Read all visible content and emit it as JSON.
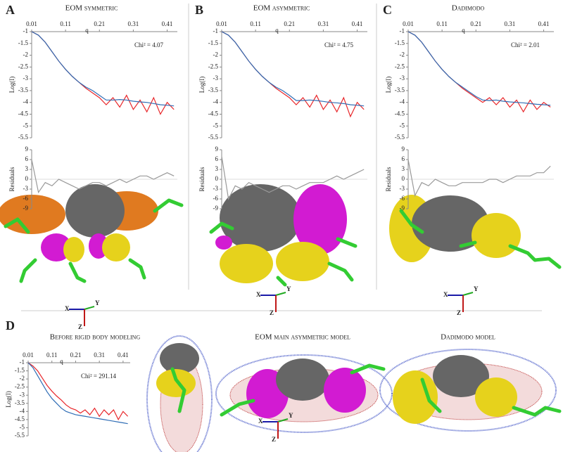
{
  "panels": [
    {
      "letter": "A",
      "title": "EOM symmetric"
    },
    {
      "letter": "B",
      "title": "EOM asymmetric"
    },
    {
      "letter": "C",
      "title": "Dadimodo"
    },
    {
      "letter": "D",
      "title": "Before rigid body modeling"
    }
  ],
  "model_titles": [
    "EOM main asymmetric model",
    "Dadimodo model"
  ],
  "axis_labels": [
    "X",
    "Y",
    "Z"
  ],
  "chart_data": [
    {
      "type": "line",
      "xlabel": "q",
      "ylabel": "Log(I)",
      "annotation": "Chi² = 4.07",
      "x": [
        0.01,
        0.03,
        0.05,
        0.07,
        0.09,
        0.11,
        0.13,
        0.15,
        0.17,
        0.19,
        0.21,
        0.23,
        0.25,
        0.27,
        0.29,
        0.31,
        0.33,
        0.35,
        0.37,
        0.39,
        0.41,
        0.43
      ],
      "xlim": [
        0.01,
        0.44
      ],
      "xticks": [
        0.01,
        0.11,
        0.21,
        0.31,
        0.41
      ],
      "ylim": [
        -5.5,
        -1
      ],
      "yticks": [
        -1,
        -1.5,
        -2,
        -2.5,
        -3,
        -3.5,
        -4,
        -4.5,
        -5,
        -5.5
      ],
      "series": [
        {
          "name": "data",
          "color": "#e8262a",
          "values": [
            -1.0,
            -1.15,
            -1.45,
            -1.85,
            -2.25,
            -2.6,
            -2.9,
            -3.15,
            -3.4,
            -3.6,
            -3.8,
            -4.1,
            -3.8,
            -4.2,
            -3.7,
            -4.3,
            -3.9,
            -4.4,
            -3.8,
            -4.5,
            -4.0,
            -4.3
          ]
        },
        {
          "name": "fit",
          "color": "#2f6db5",
          "values": [
            -1.0,
            -1.15,
            -1.45,
            -1.85,
            -2.25,
            -2.6,
            -2.9,
            -3.15,
            -3.35,
            -3.5,
            -3.7,
            -3.9,
            -3.9,
            -3.88,
            -3.9,
            -3.95,
            -3.98,
            -4.0,
            -4.05,
            -4.1,
            -4.12,
            -4.15
          ]
        }
      ]
    },
    {
      "type": "line",
      "ylabel": "Residuals",
      "x": [
        0.01,
        0.03,
        0.05,
        0.07,
        0.09,
        0.11,
        0.13,
        0.15,
        0.17,
        0.19,
        0.21,
        0.23,
        0.25,
        0.27,
        0.29,
        0.31,
        0.33,
        0.35,
        0.37,
        0.39,
        0.41,
        0.43
      ],
      "xlim": [
        0.01,
        0.44
      ],
      "ylim": [
        -9,
        9
      ],
      "yticks": [
        9,
        6,
        3,
        0,
        -3,
        -6,
        -9
      ],
      "zero_line": true,
      "series": [
        {
          "name": "residuals",
          "color": "#999999",
          "values": [
            6,
            -4,
            -1,
            -2,
            0,
            -1,
            -2,
            -3,
            -2,
            -1,
            -1,
            -2,
            -1,
            0,
            -1,
            0,
            1,
            1,
            0,
            1,
            2,
            1
          ]
        }
      ]
    },
    {
      "type": "line",
      "xlabel": "q",
      "ylabel": "Log(I)",
      "annotation": "Chi² = 4.75",
      "x": [
        0.01,
        0.03,
        0.05,
        0.07,
        0.09,
        0.11,
        0.13,
        0.15,
        0.17,
        0.19,
        0.21,
        0.23,
        0.25,
        0.27,
        0.29,
        0.31,
        0.33,
        0.35,
        0.37,
        0.39,
        0.41,
        0.43
      ],
      "xlim": [
        0.01,
        0.44
      ],
      "xticks": [
        0.01,
        0.11,
        0.21,
        0.31,
        0.41
      ],
      "ylim": [
        -5.5,
        -1
      ],
      "yticks": [
        -1,
        -1.5,
        -2,
        -2.5,
        -3,
        -3.5,
        -4,
        -4.5,
        -5,
        -5.5
      ],
      "series": [
        {
          "name": "data",
          "color": "#e8262a",
          "values": [
            -1.0,
            -1.15,
            -1.45,
            -1.85,
            -2.25,
            -2.6,
            -2.9,
            -3.15,
            -3.4,
            -3.6,
            -3.8,
            -4.1,
            -3.8,
            -4.2,
            -3.7,
            -4.3,
            -3.9,
            -4.4,
            -3.8,
            -4.6,
            -4.0,
            -4.3
          ]
        },
        {
          "name": "fit",
          "color": "#2f6db5",
          "values": [
            -1.0,
            -1.15,
            -1.45,
            -1.85,
            -2.25,
            -2.6,
            -2.9,
            -3.15,
            -3.35,
            -3.5,
            -3.7,
            -3.92,
            -3.92,
            -3.9,
            -3.92,
            -3.96,
            -4.0,
            -4.02,
            -4.05,
            -4.1,
            -4.12,
            -4.15
          ]
        }
      ]
    },
    {
      "type": "line",
      "ylabel": "Residuals",
      "x": [
        0.01,
        0.03,
        0.05,
        0.07,
        0.09,
        0.11,
        0.13,
        0.15,
        0.17,
        0.19,
        0.21,
        0.23,
        0.25,
        0.27,
        0.29,
        0.31,
        0.33,
        0.35,
        0.37,
        0.39,
        0.41,
        0.43
      ],
      "xlim": [
        0.01,
        0.44
      ],
      "ylim": [
        -9,
        9
      ],
      "yticks": [
        9,
        6,
        3,
        0,
        -3,
        -6,
        -9
      ],
      "zero_line": true,
      "series": [
        {
          "name": "residuals",
          "color": "#999999",
          "values": [
            7,
            -6,
            -2,
            -3,
            -1,
            -2,
            -3,
            -4,
            -3,
            -2,
            -2,
            -3,
            -2,
            -1,
            -1,
            -1,
            0,
            1,
            0,
            1,
            2,
            3
          ]
        }
      ]
    },
    {
      "type": "line",
      "xlabel": "q",
      "ylabel": "Log(I)",
      "annotation": "Chi² = 2.01",
      "x": [
        0.01,
        0.03,
        0.05,
        0.07,
        0.09,
        0.11,
        0.13,
        0.15,
        0.17,
        0.19,
        0.21,
        0.23,
        0.25,
        0.27,
        0.29,
        0.31,
        0.33,
        0.35,
        0.37,
        0.39,
        0.41,
        0.43
      ],
      "xlim": [
        0.01,
        0.44
      ],
      "xticks": [
        0.01,
        0.11,
        0.21,
        0.31,
        0.41
      ],
      "ylim": [
        -5.5,
        -1
      ],
      "yticks": [
        -1,
        -1.5,
        -2,
        -2.5,
        -3,
        -3.5,
        -4,
        -4.5,
        -5,
        -5.5
      ],
      "series": [
        {
          "name": "data",
          "color": "#e8262a",
          "values": [
            -1.0,
            -1.15,
            -1.45,
            -1.85,
            -2.25,
            -2.6,
            -2.9,
            -3.15,
            -3.4,
            -3.6,
            -3.8,
            -4.0,
            -3.8,
            -4.1,
            -3.8,
            -4.2,
            -3.9,
            -4.4,
            -3.9,
            -4.3,
            -4.0,
            -4.2
          ]
        },
        {
          "name": "fit",
          "color": "#2f6db5",
          "values": [
            -1.0,
            -1.15,
            -1.45,
            -1.85,
            -2.25,
            -2.6,
            -2.9,
            -3.15,
            -3.35,
            -3.55,
            -3.75,
            -3.9,
            -3.92,
            -3.9,
            -3.95,
            -3.98,
            -4.0,
            -4.02,
            -4.05,
            -4.08,
            -4.1,
            -4.12
          ]
        }
      ]
    },
    {
      "type": "line",
      "ylabel": "Residuals",
      "x": [
        0.01,
        0.03,
        0.05,
        0.07,
        0.09,
        0.11,
        0.13,
        0.15,
        0.17,
        0.19,
        0.21,
        0.23,
        0.25,
        0.27,
        0.29,
        0.31,
        0.33,
        0.35,
        0.37,
        0.39,
        0.41,
        0.43
      ],
      "xlim": [
        0.01,
        0.44
      ],
      "ylim": [
        -9,
        9
      ],
      "yticks": [
        9,
        6,
        3,
        0,
        -3,
        -6,
        -9
      ],
      "zero_line": true,
      "series": [
        {
          "name": "residuals",
          "color": "#999999",
          "values": [
            6,
            -5,
            -1,
            -2,
            0,
            -1,
            -2,
            -2,
            -1,
            -1,
            -1,
            -1,
            0,
            0,
            -1,
            0,
            1,
            1,
            1,
            2,
            2,
            4
          ]
        }
      ]
    },
    {
      "type": "line",
      "xlabel": "q",
      "ylabel": "Log(I)",
      "annotation": "Chi² = 291.14",
      "x": [
        0.01,
        0.03,
        0.05,
        0.07,
        0.09,
        0.11,
        0.13,
        0.15,
        0.17,
        0.19,
        0.21,
        0.23,
        0.25,
        0.27,
        0.29,
        0.31,
        0.33,
        0.35,
        0.37,
        0.39,
        0.41,
        0.43
      ],
      "xlim": [
        0.01,
        0.44
      ],
      "xticks": [
        0.01,
        0.11,
        0.21,
        0.31,
        0.41
      ],
      "ylim": [
        -5.5,
        -1
      ],
      "yticks": [
        -1,
        -1.5,
        -2,
        -2.5,
        -3,
        -3.5,
        -4,
        -4.5,
        -5,
        -5.5
      ],
      "series": [
        {
          "name": "data",
          "color": "#e8262a",
          "values": [
            -1.0,
            -1.2,
            -1.5,
            -1.95,
            -2.4,
            -2.75,
            -3.05,
            -3.3,
            -3.6,
            -3.8,
            -3.9,
            -4.1,
            -3.9,
            -4.2,
            -3.8,
            -4.3,
            -3.9,
            -4.2,
            -3.9,
            -4.5,
            -4.0,
            -4.3
          ]
        },
        {
          "name": "fit",
          "color": "#2f6db5",
          "values": [
            -1.0,
            -1.3,
            -1.8,
            -2.3,
            -2.8,
            -3.2,
            -3.5,
            -3.8,
            -4.0,
            -4.1,
            -4.2,
            -4.25,
            -4.3,
            -4.35,
            -4.4,
            -4.45,
            -4.5,
            -4.55,
            -4.6,
            -4.65,
            -4.7,
            -4.75
          ]
        }
      ]
    }
  ]
}
